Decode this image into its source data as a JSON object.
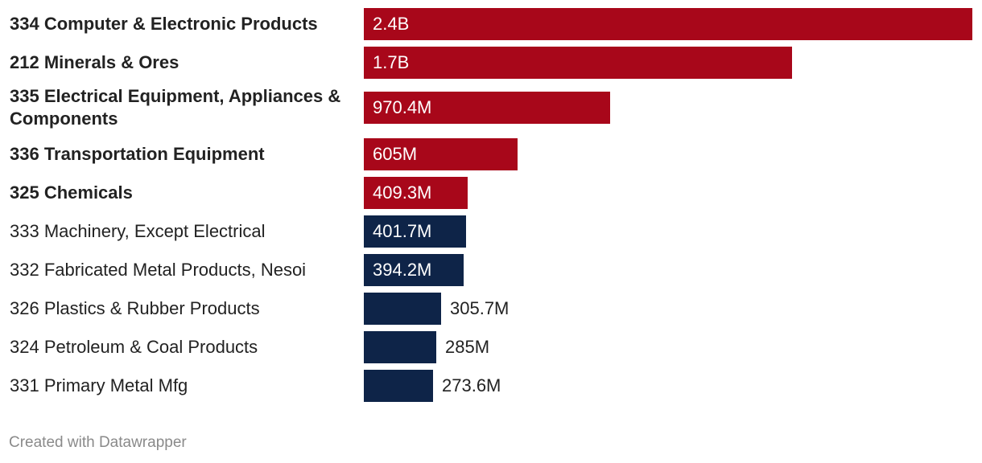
{
  "chart_data": {
    "type": "bar",
    "orientation": "horizontal",
    "title": "",
    "xlabel": "",
    "ylabel": "",
    "xlim": [
      0,
      2400000000
    ],
    "colors": {
      "highlight": "#a8071a",
      "default": "#0e2448"
    },
    "categories": [
      "334 Computer & Electronic Products",
      "212 Minerals & Ores",
      "335 Electrical Equipment, Appliances & Components",
      "336 Transportation Equipment",
      "325 Chemicals",
      "333 Machinery, Except Electrical",
      "332 Fabricated Metal Products, Nesoi",
      "326 Plastics & Rubber Products",
      "324 Petroleum & Coal Products",
      "331 Primary Metal Mfg"
    ],
    "values": [
      2400000000,
      1690000000,
      970400000,
      605000000,
      409300000,
      401700000,
      394200000,
      305700000,
      285000000,
      273600000
    ],
    "value_labels": [
      "2.4B",
      "1.7B",
      "970.4M",
      "605M",
      "409.3M",
      "401.7M",
      "394.2M",
      "305.7M",
      "285M",
      "273.6M"
    ],
    "highlighted": [
      true,
      true,
      true,
      true,
      true,
      false,
      false,
      false,
      false,
      false
    ]
  },
  "footer": {
    "credit": "Created with Datawrapper"
  }
}
